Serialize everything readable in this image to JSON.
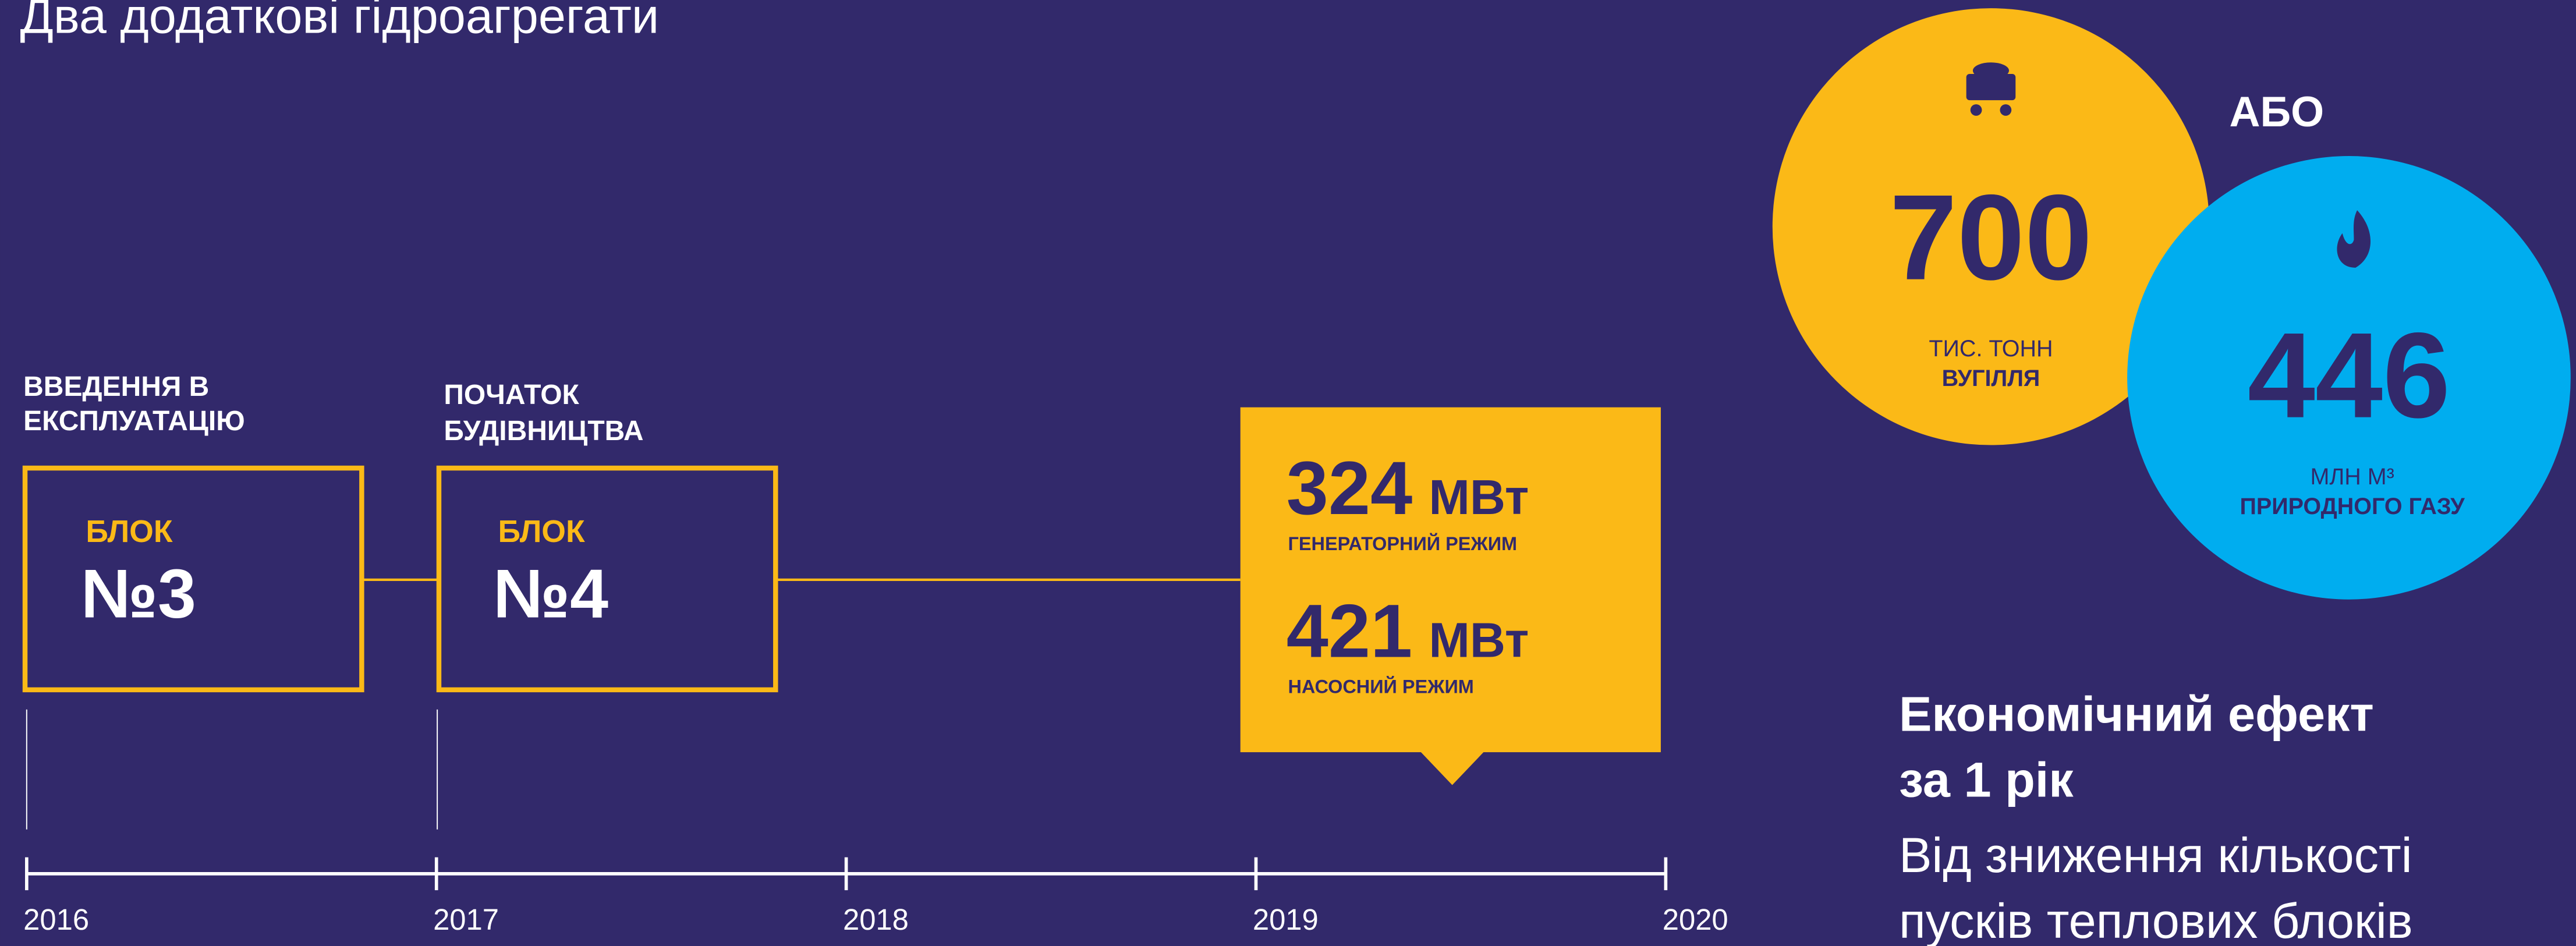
{
  "header": {
    "title": "Два додаткові гідроагрегати"
  },
  "events": [
    {
      "label": [
        "ВВЕДЕННЯ В",
        "ЕКСПЛУАТАЦІЮ"
      ],
      "block_label": "БЛОК",
      "block_number": "№3"
    },
    {
      "label": [
        "ПОЧАТОК",
        "БУДІВНИЦТВА"
      ],
      "block_label": "БЛОК",
      "block_number": "№4"
    }
  ],
  "timeline": {
    "years": [
      "2016",
      "2017",
      "2018",
      "2019",
      "2020"
    ]
  },
  "capacity": [
    {
      "value": "324",
      "unit": "МВт",
      "mode": "ГЕНЕРАТОРНИЙ РЕЖИМ"
    },
    {
      "value": "421",
      "unit": "МВт",
      "mode": "НАСОСНИЙ РЕЖИМ"
    }
  ],
  "coal": {
    "value": "700",
    "unit": "ТИС. ТОНН",
    "name": "ВУГІЛЛЯ"
  },
  "or": "АБО",
  "gas": {
    "value": "446",
    "unit": "МЛН М³",
    "name": "ПРИРОДНОГО ГАЗУ"
  },
  "effect": {
    "title": [
      "Економічний ефект",
      "за 1 рік"
    ],
    "text": [
      "Від зниження кількості",
      "пусків теплових блоків"
    ]
  }
}
